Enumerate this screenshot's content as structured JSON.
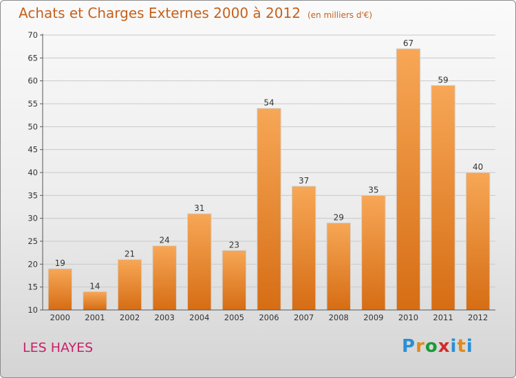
{
  "header": {
    "title": "Achats et Charges Externes 2000 à 2012",
    "unit": "(en milliers d'€)"
  },
  "footer": {
    "place": "LES HAYES",
    "logo_letters": [
      "P",
      "r",
      "o",
      "x",
      "i",
      "t",
      "i"
    ],
    "logo_colors": [
      "#2a8fd6",
      "#e08a1e",
      "#1a9a3a",
      "#d42b2b",
      "#2a8fd6",
      "#e08a1e",
      "#2a8fd6"
    ]
  },
  "chart_data": {
    "type": "bar",
    "categories": [
      "2000",
      "2001",
      "2002",
      "2003",
      "2004",
      "2005",
      "2006",
      "2007",
      "2008",
      "2009",
      "2010",
      "2011",
      "2012"
    ],
    "values": [
      19,
      14,
      21,
      24,
      31,
      23,
      54,
      37,
      29,
      35,
      67,
      59,
      40
    ],
    "yticks": [
      10,
      15,
      20,
      25,
      30,
      35,
      40,
      45,
      50,
      55,
      60,
      65,
      70
    ],
    "ylim": [
      10,
      70
    ],
    "grid": true,
    "bar_color": "#f0963a"
  }
}
